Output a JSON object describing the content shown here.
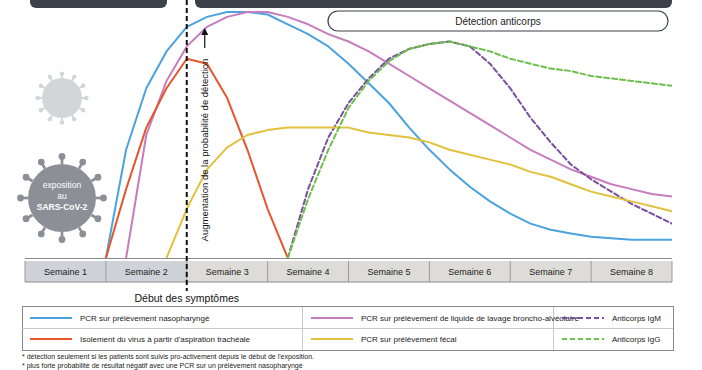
{
  "chart_data": {
    "type": "line",
    "x": [
      1,
      1.25,
      1.5,
      1.75,
      2,
      2.25,
      2.5,
      2.75,
      3,
      3.25,
      3.5,
      3.75,
      4,
      4.25,
      4.5,
      4.75,
      5,
      5.25,
      5.5,
      5.75,
      6,
      6.25,
      6.5,
      6.75,
      7,
      7.25,
      7.5,
      7.75,
      8
    ],
    "xlim": [
      0,
      8
    ],
    "ylim": [
      0,
      100
    ],
    "xticks": [
      {
        "value": 0.5,
        "label": "Semaine 1"
      },
      {
        "value": 1.5,
        "label": "Semaine 2"
      },
      {
        "value": 2.5,
        "label": "Semaine 3"
      },
      {
        "value": 3.5,
        "label": "Semaine 4"
      },
      {
        "value": 4.5,
        "label": "Semaine 5"
      },
      {
        "value": 5.5,
        "label": "Semaine 6"
      },
      {
        "value": 6.5,
        "label": "Semaine 7"
      },
      {
        "value": 7.5,
        "label": "Semaine 8"
      }
    ],
    "tick_labels": "x",
    "grid": false,
    "y_label": "Augmentation de la probabilité de détection",
    "symptom_onset": {
      "x": 2,
      "text": "Début des symptômes"
    },
    "header_label": "Détection anticorps",
    "exposure_label": [
      "exposition",
      "au",
      "SARS-CoV-2"
    ],
    "notes": [
      "* détection seulement si les patients sont suivis pro-activement depuis le début de l'exposition.",
      "* plus forte probabilité de résultat négatif avec une PCR sur un prélèvement nasopharyngé"
    ],
    "series": [
      {
        "name": "PCR sur prélèvement nasopharyngé",
        "color": "#4aa3df",
        "line_style": "solid",
        "values": [
          0,
          44,
          69,
          84,
          94,
          98,
          100,
          100,
          99,
          95,
          91,
          86,
          79,
          71,
          63,
          53,
          44,
          36,
          29,
          23,
          18,
          14,
          11.5,
          10,
          8.6,
          8,
          7.4,
          7.4,
          7.4
        ]
      },
      {
        "name": "PCR sur prélèvement de liquide de lavage broncho-alvéolaire",
        "color": "#c77dbd",
        "line_style": "solid",
        "values": [
          null,
          0,
          50,
          72,
          86,
          94,
          98,
          100,
          100,
          98,
          95,
          91,
          88,
          84,
          79,
          74,
          69,
          64,
          59,
          54,
          49,
          44,
          40,
          36,
          33,
          30,
          28,
          26,
          25
        ]
      },
      {
        "name": "Anticorps IgM",
        "color": "#7b4fa0",
        "line_style": "dashed",
        "values": [
          null,
          null,
          null,
          null,
          null,
          null,
          null,
          null,
          null,
          0,
          28,
          49,
          63,
          73,
          81,
          85,
          87,
          88,
          86,
          79,
          69,
          57,
          47,
          38,
          32,
          27,
          22,
          18,
          14
        ]
      },
      {
        "name": "Isolement du virus à partir d'aspiration trachéale",
        "color": "#e5562b",
        "line_style": "solid",
        "values": [
          0,
          28,
          53,
          69,
          81,
          79,
          65,
          44,
          20,
          0,
          null,
          null,
          null,
          null,
          null,
          null,
          null,
          null,
          null,
          null,
          null,
          null,
          null,
          null,
          null,
          null,
          null,
          null,
          null
        ]
      },
      {
        "name": "PCR sur prélèvement fécal",
        "color": "#e2c13c",
        "line_style": "solid",
        "values": [
          null,
          null,
          null,
          0,
          20,
          36,
          45,
          50,
          52,
          53,
          53,
          53,
          53,
          51,
          50,
          49,
          47,
          44,
          42,
          40,
          38,
          35,
          33,
          30,
          27,
          25,
          23,
          21,
          19
        ]
      },
      {
        "name": "Anticorps IgG",
        "color": "#6cc04a",
        "line_style": "dashed",
        "values": [
          null,
          null,
          null,
          null,
          null,
          null,
          null,
          null,
          null,
          0,
          24,
          44,
          61,
          72,
          80,
          85,
          87,
          88,
          86,
          84,
          81,
          79,
          77,
          76,
          74,
          73,
          72,
          71,
          70
        ]
      }
    ]
  }
}
